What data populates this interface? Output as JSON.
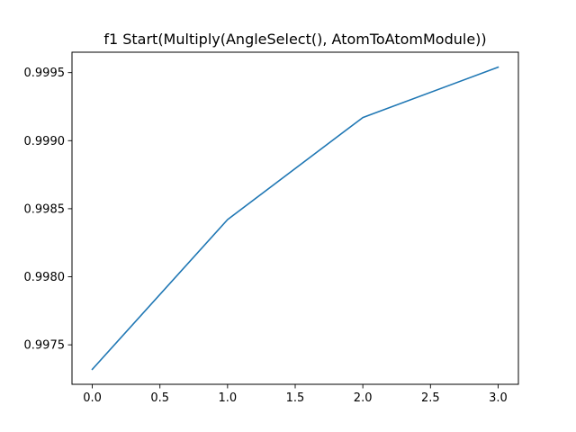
{
  "chart_data": {
    "type": "line",
    "title": "f1 Start(Multiply(AngleSelect(), AtomToAtomModule))",
    "xlabel": "",
    "ylabel": "",
    "x": [
      0,
      1,
      2,
      3
    ],
    "series": [
      {
        "color": "#1f77b4",
        "values": [
          0.99732,
          0.99842,
          0.99917,
          0.99954
        ]
      }
    ],
    "xlim": [
      -0.15,
      3.15
    ],
    "ylim": [
      0.99721,
      0.99965
    ],
    "xticks": [
      0.0,
      0.5,
      1.0,
      1.5,
      2.0,
      2.5,
      3.0
    ],
    "xtick_labels": [
      "0.0",
      "0.5",
      "1.0",
      "1.5",
      "2.0",
      "2.5",
      "3.0"
    ],
    "yticks": [
      0.9975,
      0.998,
      0.9985,
      0.999,
      0.9995
    ],
    "ytick_labels": [
      "0.9975",
      "0.9980",
      "0.9985",
      "0.9990",
      "0.9995"
    ],
    "grid": false,
    "legend": "none"
  }
}
